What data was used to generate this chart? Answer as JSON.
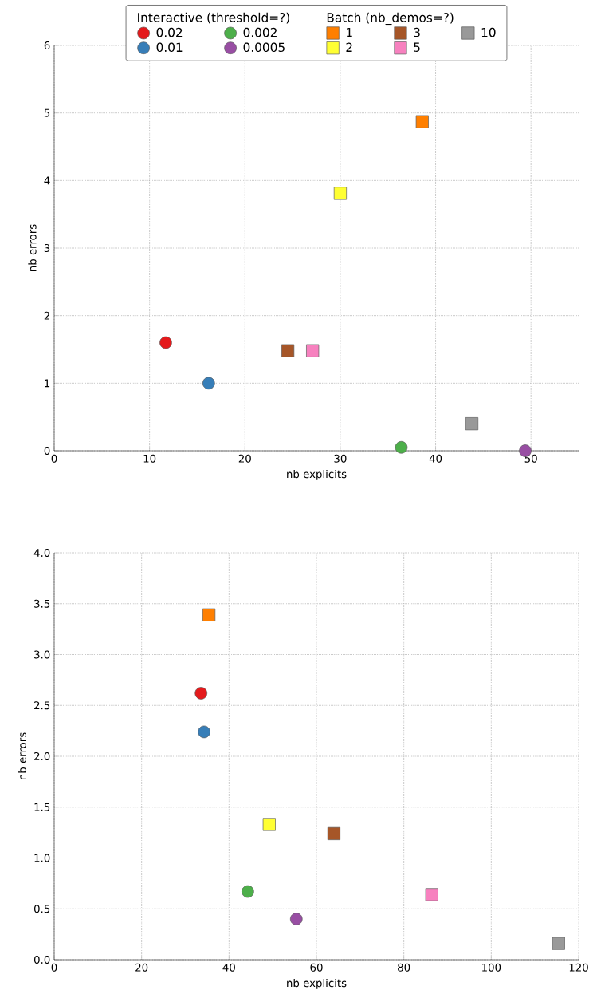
{
  "chart_data": [
    {
      "type": "scatter",
      "xlabel": "nb explicits",
      "ylabel": "nb errors",
      "xlim": [
        0,
        55
      ],
      "ylim": [
        0,
        6
      ],
      "xticks": [
        0,
        10,
        20,
        30,
        40,
        50
      ],
      "yticks": [
        0,
        1,
        2,
        3,
        4,
        5,
        6
      ],
      "grid": true,
      "legend": "top",
      "annotations": [
        "Interactive (threshold=?)",
        "Batch (nb_demos=?)"
      ],
      "series": [
        {
          "name": "0.02",
          "color": "#e41a1c",
          "marker": "circle",
          "x": [
            11.7
          ],
          "values": [
            1.6
          ]
        },
        {
          "name": "0.01",
          "color": "#377eb8",
          "marker": "circle",
          "x": [
            16.2
          ],
          "values": [
            1.0
          ]
        },
        {
          "name": "0.002",
          "color": "#4daf4a",
          "marker": "circle",
          "x": [
            36.4
          ],
          "values": [
            0.05
          ]
        },
        {
          "name": "0.0005",
          "color": "#984ea3",
          "marker": "circle",
          "x": [
            49.4
          ],
          "values": [
            0.0
          ]
        },
        {
          "name": "1",
          "color": "#ff7f00",
          "marker": "square",
          "x": [
            38.6
          ],
          "values": [
            4.87
          ]
        },
        {
          "name": "2",
          "color": "#ffff33",
          "marker": "square",
          "x": [
            30.0
          ],
          "values": [
            3.81
          ]
        },
        {
          "name": "3",
          "color": "#a65628",
          "marker": "square",
          "x": [
            24.5
          ],
          "values": [
            1.48
          ]
        },
        {
          "name": "5",
          "color": "#f781bf",
          "marker": "square",
          "x": [
            27.1
          ],
          "values": [
            1.48
          ]
        },
        {
          "name": "10",
          "color": "#999999",
          "marker": "square",
          "x": [
            43.8
          ],
          "values": [
            0.4
          ]
        }
      ]
    },
    {
      "type": "scatter",
      "xlabel": "nb explicits",
      "ylabel": "nb errors",
      "xlim": [
        0,
        120
      ],
      "ylim": [
        0,
        4
      ],
      "xticks": [
        0,
        20,
        40,
        60,
        80,
        100,
        120
      ],
      "yticks": [
        {
          "value": 0,
          "label": "0.0"
        },
        {
          "value": 0.5,
          "label": "0.5"
        },
        {
          "value": 1,
          "label": "1.0"
        },
        {
          "value": 1.5,
          "label": "1.5"
        },
        {
          "value": 2,
          "label": "2.0"
        },
        {
          "value": 2.5,
          "label": "2.5"
        },
        {
          "value": 3,
          "label": "3.0"
        },
        {
          "value": 3.5,
          "label": "3.5"
        },
        {
          "value": 4,
          "label": "4.0"
        }
      ],
      "grid": true,
      "series": [
        {
          "color": "#e41a1c",
          "marker": "circle",
          "x": [
            33.6
          ],
          "values": [
            2.62
          ]
        },
        {
          "color": "#377eb8",
          "marker": "circle",
          "x": [
            34.3
          ],
          "values": [
            2.24
          ]
        },
        {
          "color": "#4daf4a",
          "marker": "circle",
          "x": [
            44.3
          ],
          "values": [
            0.67
          ]
        },
        {
          "color": "#984ea3",
          "marker": "circle",
          "x": [
            55.4
          ],
          "values": [
            0.4
          ]
        },
        {
          "color": "#ff7f00",
          "marker": "square",
          "x": [
            35.4
          ],
          "values": [
            3.39
          ]
        },
        {
          "color": "#ffff33",
          "marker": "square",
          "x": [
            49.2
          ],
          "values": [
            1.33
          ]
        },
        {
          "color": "#a65628",
          "marker": "square",
          "x": [
            64.0
          ],
          "values": [
            1.24
          ]
        },
        {
          "color": "#f781bf",
          "marker": "square",
          "x": [
            86.4
          ],
          "values": [
            0.64
          ]
        },
        {
          "color": "#999999",
          "marker": "square",
          "x": [
            115.4
          ],
          "values": [
            0.16
          ]
        }
      ]
    }
  ]
}
